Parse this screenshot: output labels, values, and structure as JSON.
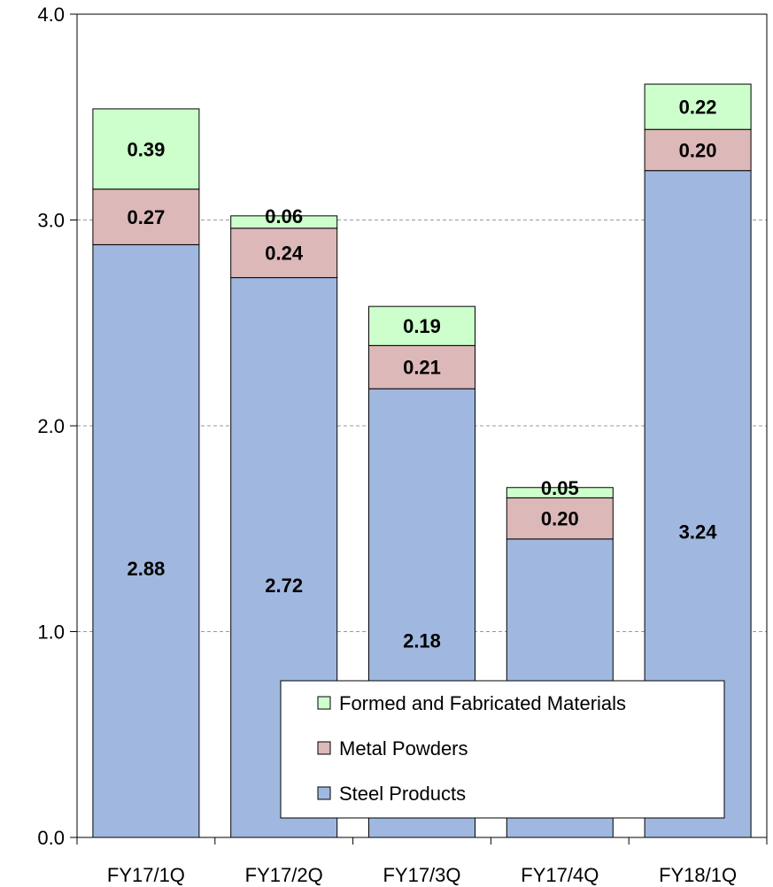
{
  "chart_data": {
    "type": "bar",
    "stacked": true,
    "categories": [
      "FY17/1Q",
      "FY17/2Q",
      "FY17/3Q",
      "FY17/4Q",
      "FY18/1Q"
    ],
    "series": [
      {
        "name": "Steel Products",
        "values": [
          2.88,
          2.72,
          2.18,
          1.45,
          3.24
        ],
        "color": "#a0b8e0",
        "labels": [
          "2.88",
          "2.72",
          "2.18",
          "1.45",
          "3.24"
        ]
      },
      {
        "name": "Metal Powders",
        "values": [
          0.27,
          0.24,
          0.21,
          0.2,
          0.2
        ],
        "color": "#ddb8b8",
        "labels": [
          "0.27",
          "0.24",
          "0.21",
          "0.20",
          "0.20"
        ]
      },
      {
        "name": "Formed and Fabricated Materials",
        "values": [
          0.39,
          0.06,
          0.19,
          0.05,
          0.22
        ],
        "color": "#ccffcc",
        "labels": [
          "0.39",
          "0.06",
          "0.19",
          "0.05",
          "0.22"
        ]
      }
    ],
    "ylim": [
      0,
      4.0
    ],
    "yticks": [
      0,
      1,
      2,
      3,
      4
    ],
    "ytick_labels": [
      "0.0",
      "1.0",
      "2.0",
      "3.0",
      "4.0"
    ],
    "grid": true,
    "legend_position": "bottom-right",
    "legend_order": [
      "Formed and Fabricated Materials",
      "Metal Powders",
      "Steel Products"
    ]
  }
}
